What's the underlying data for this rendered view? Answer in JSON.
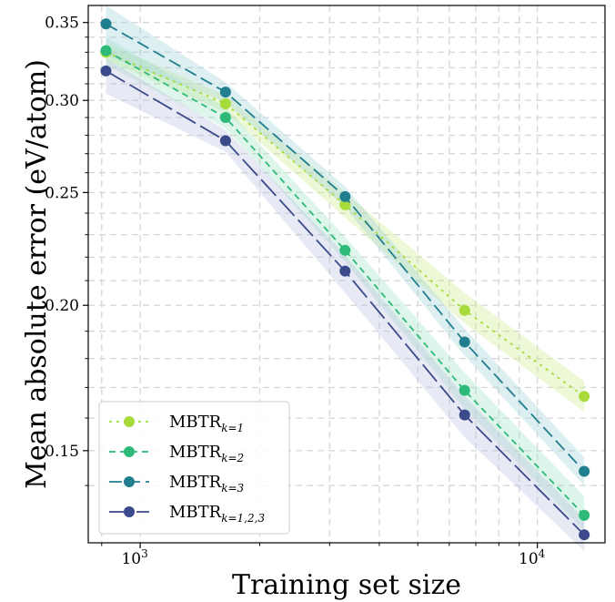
{
  "chart_data": {
    "type": "line",
    "xlabel": "Training set size",
    "ylabel": "Mean absolute error (eV/atom)",
    "x_scale": "log",
    "y_scale": "log",
    "xlim": [
      740,
      14800
    ],
    "ylim": [
      0.125,
      0.362
    ],
    "x_ticks": [
      {
        "value": 1000,
        "base": "10",
        "exp": "3"
      },
      {
        "value": 10000,
        "base": "10",
        "exp": "4"
      }
    ],
    "x_minor_ticks": [
      800,
      2000,
      3000,
      4000,
      5000,
      6000,
      7000,
      8000,
      9000
    ],
    "y_ticks": [
      {
        "value": 0.15,
        "label": "0.15"
      },
      {
        "value": 0.2,
        "label": "0.20"
      },
      {
        "value": 0.25,
        "label": "0.25"
      },
      {
        "value": 0.3,
        "label": "0.30"
      },
      {
        "value": 0.35,
        "label": "0.35"
      }
    ],
    "y_minor_ticks": [
      0.14,
      0.16,
      0.17,
      0.18,
      0.19,
      0.21,
      0.22,
      0.23,
      0.24,
      0.26,
      0.27,
      0.28,
      0.29,
      0.31,
      0.32,
      0.33,
      0.34
    ],
    "grid": true,
    "x": [
      820,
      1640,
      3280,
      6560,
      13120
    ],
    "series": [
      {
        "name": "MBTR",
        "sub": "k=1",
        "values": [
          0.33,
          0.298,
          0.244,
          0.198,
          0.167
        ],
        "lower": [
          0.325,
          0.293,
          0.238,
          0.193,
          0.162
        ],
        "upper": [
          0.336,
          0.303,
          0.25,
          0.205,
          0.172
        ],
        "color": "#a6db3a",
        "dash": "3 5",
        "band_color": "#c9ea8a"
      },
      {
        "name": "MBTR",
        "sub": "k=2",
        "values": [
          0.331,
          0.29,
          0.223,
          0.169,
          0.132
        ],
        "lower": [
          0.322,
          0.284,
          0.218,
          0.163,
          0.128
        ],
        "upper": [
          0.34,
          0.296,
          0.229,
          0.175,
          0.137
        ],
        "color": "#2dba78",
        "dash": "7 5",
        "band_color": "#9fe3c2"
      },
      {
        "name": "MBTR",
        "sub": "k=3",
        "values": [
          0.349,
          0.305,
          0.248,
          0.186,
          0.144
        ],
        "lower": [
          0.328,
          0.299,
          0.243,
          0.181,
          0.14
        ],
        "upper": [
          0.362,
          0.311,
          0.253,
          0.191,
          0.148
        ],
        "color": "#217e8e",
        "dash": "14 6",
        "band_color": "#9fd0d8"
      },
      {
        "name": "MBTR",
        "sub": "k=1,2,3",
        "values": [
          0.318,
          0.277,
          0.214,
          0.161,
          0.127
        ],
        "lower": [
          0.304,
          0.271,
          0.205,
          0.154,
          0.123
        ],
        "upper": [
          0.326,
          0.283,
          0.221,
          0.167,
          0.131
        ],
        "color": "#3b4a8a",
        "dash": "24 6",
        "band_color": "#b9bfe0"
      }
    ],
    "legend_position": "bottom-left"
  }
}
